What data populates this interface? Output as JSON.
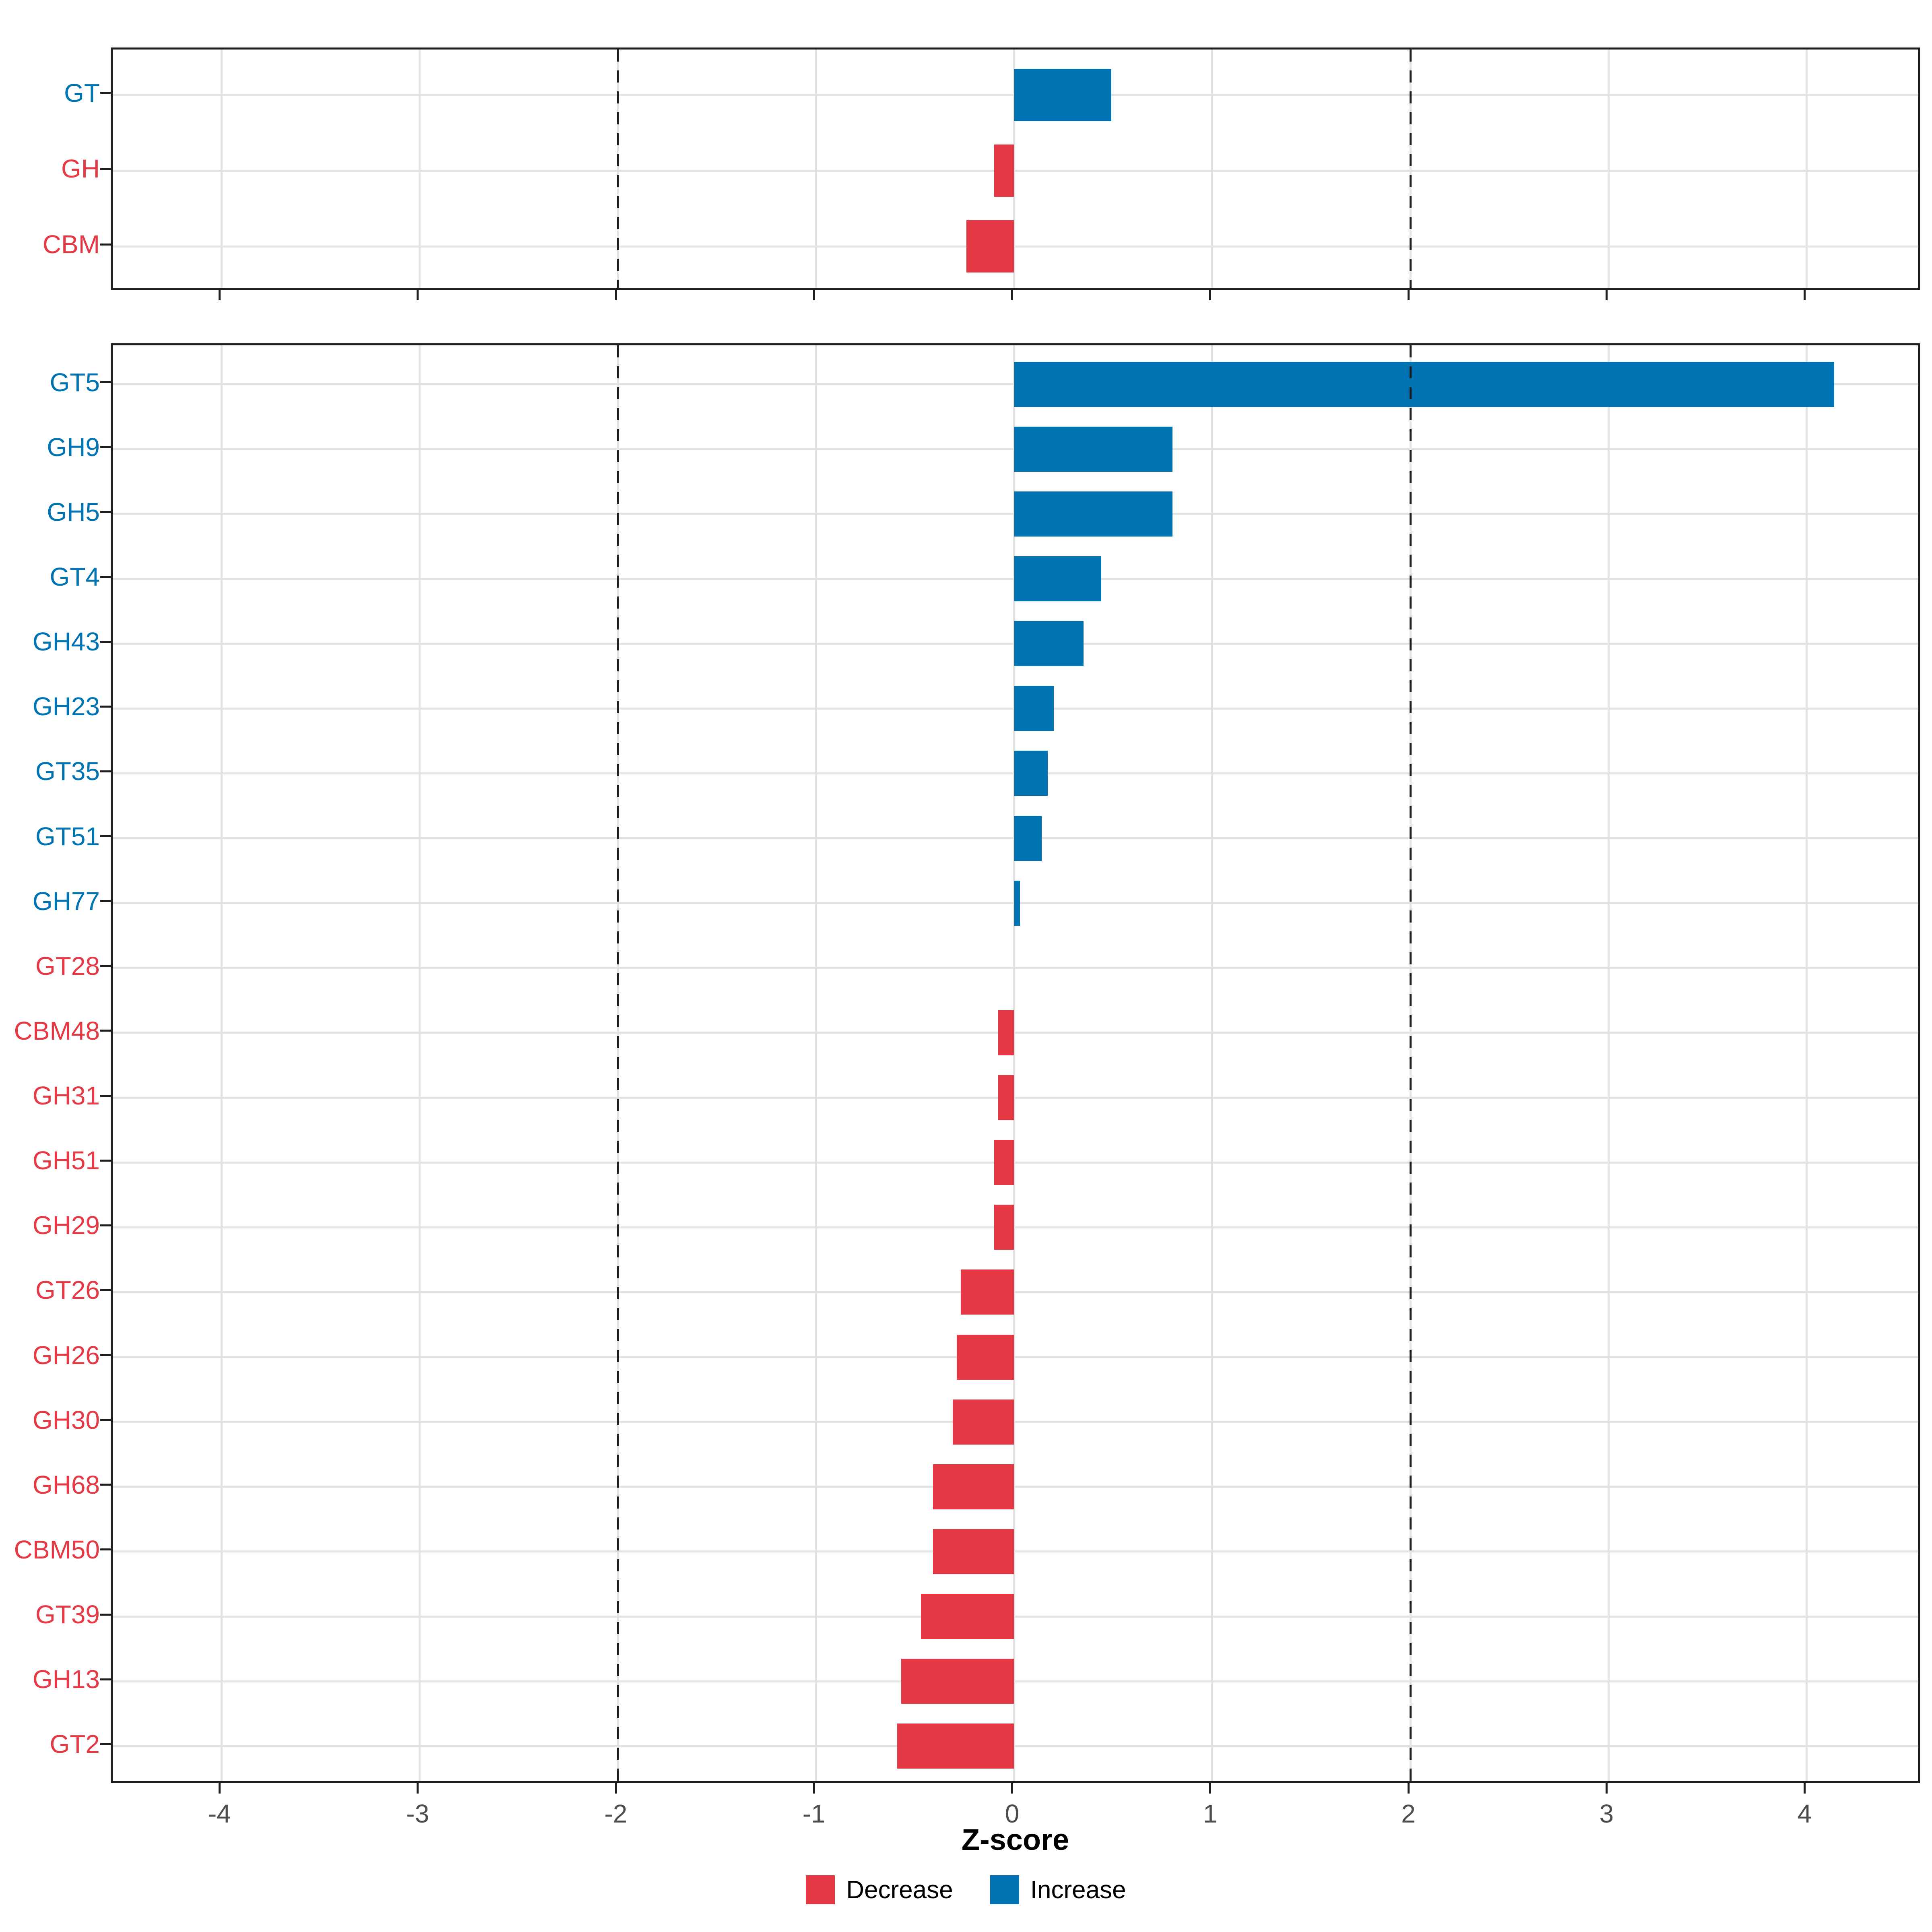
{
  "chart_data": {
    "type": "bar",
    "orientation": "horizontal",
    "title": "",
    "xlabel": "Z-score",
    "ylabel": "",
    "xlim": [
      -4.55,
      4.58
    ],
    "x_ticks": [
      -4,
      -3,
      -2,
      -1,
      0,
      1,
      2,
      3,
      4
    ],
    "reference_lines": [
      -2,
      2
    ],
    "grid": "on",
    "legend_position": "bottom",
    "colors": {
      "increase": "#0073B2",
      "decrease": "#E63946"
    },
    "legend": [
      {
        "label": "Decrease",
        "direction": "decrease"
      },
      {
        "label": "Increase",
        "direction": "increase"
      }
    ],
    "panels": [
      {
        "name": "category-summary",
        "items": [
          {
            "label": "GT",
            "value": 0.49,
            "direction": "increase"
          },
          {
            "label": "GH",
            "value": -0.1,
            "direction": "decrease"
          },
          {
            "label": "CBM",
            "value": -0.24,
            "direction": "decrease"
          }
        ]
      },
      {
        "name": "family-detail",
        "items": [
          {
            "label": "GT5",
            "value": 4.14,
            "direction": "increase"
          },
          {
            "label": "GH9",
            "value": 0.8,
            "direction": "increase"
          },
          {
            "label": "GH5",
            "value": 0.8,
            "direction": "increase"
          },
          {
            "label": "GT4",
            "value": 0.44,
            "direction": "increase"
          },
          {
            "label": "GH43",
            "value": 0.35,
            "direction": "increase"
          },
          {
            "label": "GH23",
            "value": 0.2,
            "direction": "increase"
          },
          {
            "label": "GT35",
            "value": 0.17,
            "direction": "increase"
          },
          {
            "label": "GT51",
            "value": 0.14,
            "direction": "increase"
          },
          {
            "label": "GH77",
            "value": 0.03,
            "direction": "increase"
          },
          {
            "label": "GT28",
            "value": 0.0,
            "direction": "decrease"
          },
          {
            "label": "CBM48",
            "value": -0.08,
            "direction": "decrease"
          },
          {
            "label": "GH31",
            "value": -0.08,
            "direction": "decrease"
          },
          {
            "label": "GH51",
            "value": -0.1,
            "direction": "decrease"
          },
          {
            "label": "GH29",
            "value": -0.1,
            "direction": "decrease"
          },
          {
            "label": "GT26",
            "value": -0.27,
            "direction": "decrease"
          },
          {
            "label": "GH26",
            "value": -0.29,
            "direction": "decrease"
          },
          {
            "label": "GH30",
            "value": -0.31,
            "direction": "decrease"
          },
          {
            "label": "GH68",
            "value": -0.41,
            "direction": "decrease"
          },
          {
            "label": "CBM50",
            "value": -0.41,
            "direction": "decrease"
          },
          {
            "label": "GT39",
            "value": -0.47,
            "direction": "decrease"
          },
          {
            "label": "GH13",
            "value": -0.57,
            "direction": "decrease"
          },
          {
            "label": "GT2",
            "value": -0.59,
            "direction": "decrease"
          }
        ]
      }
    ]
  }
}
